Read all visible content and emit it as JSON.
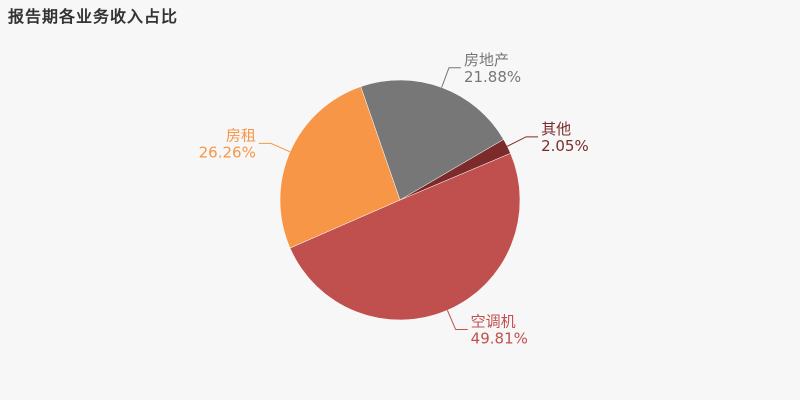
{
  "chart_data": {
    "type": "pie",
    "title": "报告期各业务收入占比",
    "slices": [
      {
        "name": "空调机",
        "value": 49.81,
        "value_label": "49.81%",
        "color": "#c0504d"
      },
      {
        "name": "房租",
        "value": 26.26,
        "value_label": "26.26%",
        "color": "#f79646"
      },
      {
        "name": "房地产",
        "value": 21.88,
        "value_label": "21.88%",
        "color": "#777777"
      },
      {
        "name": "其他",
        "value": 2.05,
        "value_label": "2.05%",
        "color": "#7b2c2a"
      }
    ]
  },
  "colors": {
    "background": "#f7f7f7",
    "title": "#333333",
    "slice_border": "#ffffff"
  }
}
